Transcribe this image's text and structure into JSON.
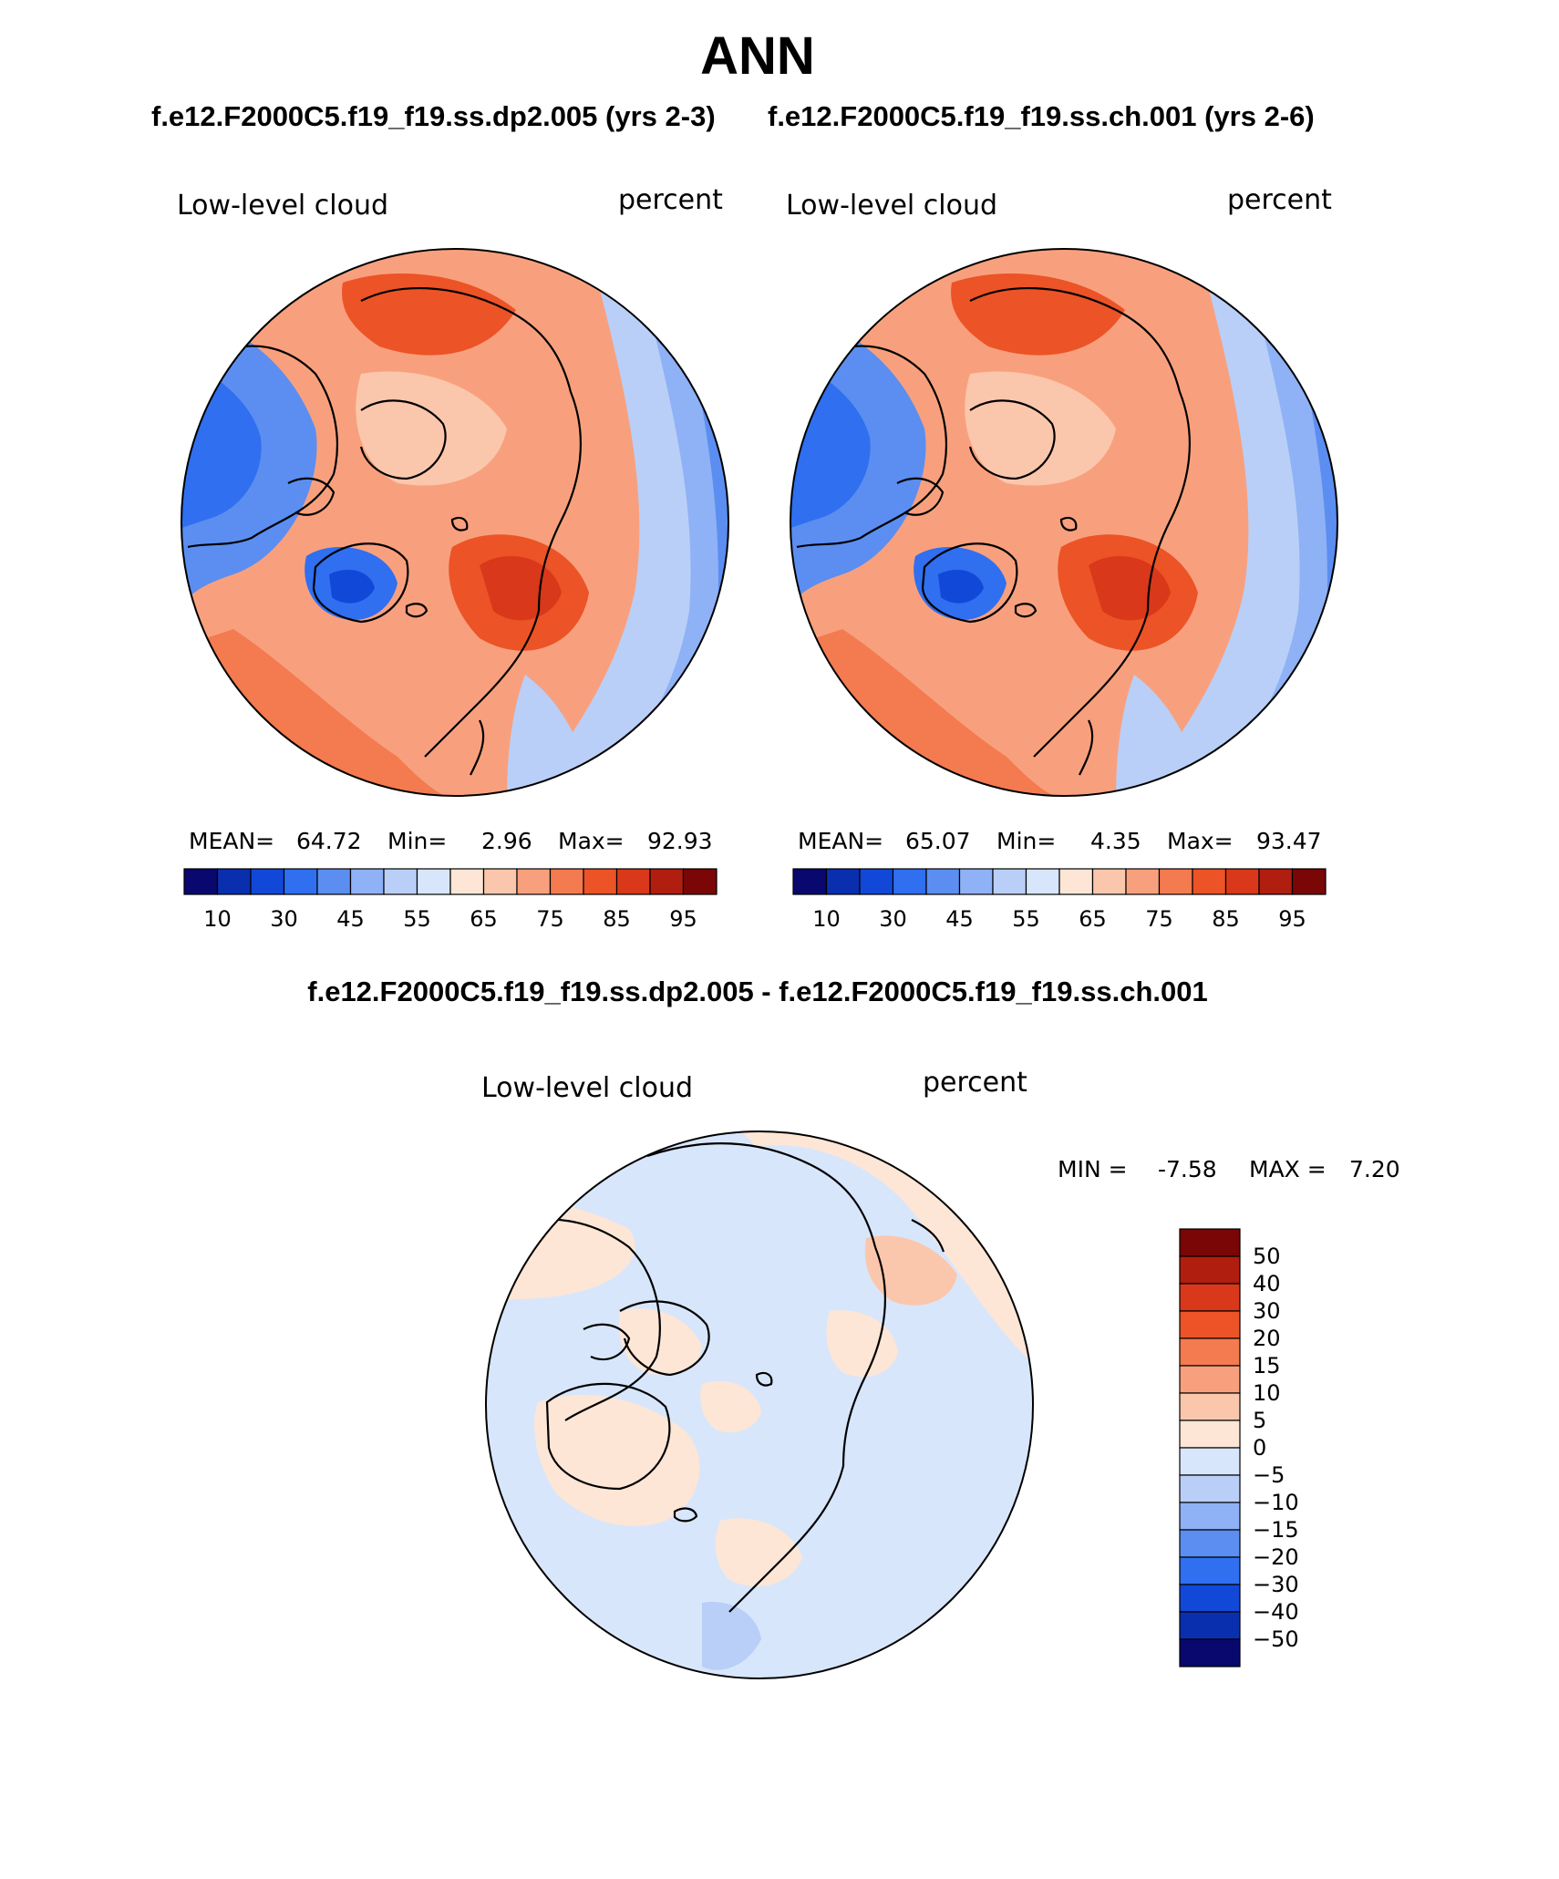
{
  "page": {
    "title": "ANN",
    "case_a_title": "f.e12.F2000C5.f19_f19.ss.dp2.005 (yrs 2-3)",
    "case_b_title": "f.e12.F2000C5.f19_f19.ss.ch.001 (yrs 2-6)",
    "diff_title": "f.e12.F2000C5.f19_f19.ss.dp2.005 - f.e12.F2000C5.f19_f19.ss.ch.001"
  },
  "colors": {
    "abs_palette": [
      "#08086e",
      "#0a2fae",
      "#1148d8",
      "#2f6ff0",
      "#5b8ef0",
      "#8fb1f5",
      "#b9cff7",
      "#d8e6fb",
      "#fde6d6",
      "#fbc7ac",
      "#f8a07d",
      "#f47a4f",
      "#ec5327",
      "#d9381a",
      "#b01e0f",
      "#7a0606"
    ],
    "diff_palette": [
      "#08086e",
      "#0a2fae",
      "#1148d8",
      "#2f6ff0",
      "#5b8ef0",
      "#8fb1f5",
      "#b9cff7",
      "#d8e6fb",
      "#fde6d6",
      "#fbc7ac",
      "#f8a07d",
      "#f47a4f",
      "#ec5327",
      "#d9381a",
      "#b01e0f",
      "#7a0606"
    ]
  },
  "chart_data": [
    {
      "type": "heatmap",
      "projection": "north-polar-stereographic",
      "field": "Low-level cloud",
      "units": "percent",
      "case": "f.e12.F2000C5.f19_f19.ss.dp2.005 (yrs 2-3)",
      "mean_label": "MEAN=",
      "mean": "64.72",
      "min_label": "Min=",
      "min": "2.96",
      "max_label": "Max=",
      "max": "92.93",
      "colorbar_ticks": [
        "10",
        "30",
        "45",
        "55",
        "65",
        "75",
        "85",
        "95"
      ],
      "colorbar_levels": [
        10,
        20,
        30,
        40,
        45,
        50,
        55,
        60,
        65,
        70,
        75,
        80,
        85,
        90,
        95
      ]
    },
    {
      "type": "heatmap",
      "projection": "north-polar-stereographic",
      "field": "Low-level cloud",
      "units": "percent",
      "case": "f.e12.F2000C5.f19_f19.ss.ch.001 (yrs 2-6)",
      "mean_label": "MEAN=",
      "mean": "65.07",
      "min_label": "Min=",
      "min": "4.35",
      "max_label": "Max=",
      "max": "93.47",
      "colorbar_ticks": [
        "10",
        "30",
        "45",
        "55",
        "65",
        "75",
        "85",
        "95"
      ],
      "colorbar_levels": [
        10,
        20,
        30,
        40,
        45,
        50,
        55,
        60,
        65,
        70,
        75,
        80,
        85,
        90,
        95
      ]
    },
    {
      "type": "heatmap",
      "projection": "north-polar-stereographic",
      "field": "Low-level cloud",
      "units": "percent",
      "case": "f.e12.F2000C5.f19_f19.ss.dp2.005 - f.e12.F2000C5.f19_f19.ss.ch.001",
      "min_label": "MIN =",
      "min": "-7.58",
      "max_label": "MAX =",
      "max": "7.20",
      "colorbar_ticks": [
        "50",
        "40",
        "30",
        "20",
        "15",
        "10",
        "5",
        "0",
        "−5",
        "−10",
        "−15",
        "−20",
        "−30",
        "−40",
        "−50"
      ],
      "colorbar_levels": [
        50,
        40,
        30,
        20,
        15,
        10,
        5,
        0,
        -5,
        -10,
        -15,
        -20,
        -30,
        -40,
        -50
      ]
    }
  ]
}
